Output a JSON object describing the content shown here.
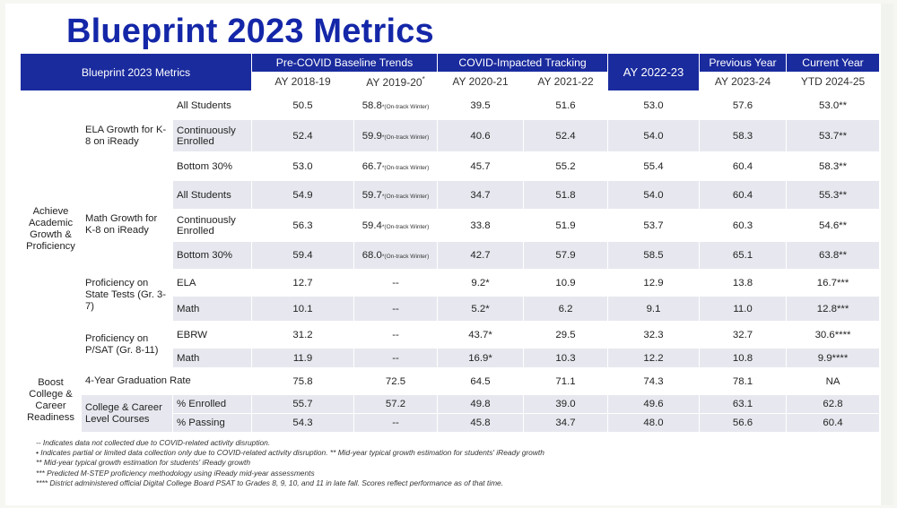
{
  "title": "Blueprint 2023 Metrics",
  "table": {
    "corner_label": "Blueprint 2023 Metrics",
    "column_groups": [
      {
        "label": "Pre-COVID Baseline Trends"
      },
      {
        "label": "COVID-Impacted Tracking"
      },
      {
        "label": "AY 2022-23"
      },
      {
        "label": "Previous Year"
      },
      {
        "label": "Current Year"
      }
    ],
    "subcolumns": [
      "AY 2018-19",
      "AY 2019-20",
      "AY 2020-21",
      "AY 2021-22",
      "AY 2023-24",
      "YTD 2024-25"
    ],
    "subcolumn_marks": {
      "ay2019_20": "*"
    },
    "categories": {
      "achieve": "Achieve Academic Growth & Proficiency",
      "boost": "Boost College & Career Readiness"
    },
    "subgroups": {
      "ela_growth": "ELA Growth for K-8 on iReady",
      "math_growth": "Math Growth for K-8 on iReady",
      "state_tests": "Proficiency on State Tests (Gr. 3-7)",
      "psat": "Proficiency on P/SAT (Gr. 8-11)",
      "graduation": "4-Year Graduation Rate",
      "college_courses": "College & Career Level Courses"
    },
    "rows": [
      {
        "label": "All Students",
        "values": [
          "50.5",
          "58.8",
          "39.5",
          "51.6",
          "53.0",
          "57.6",
          "53.0**"
        ],
        "v2_note": "*(On-track Winter)"
      },
      {
        "label": "Continuously Enrolled",
        "values": [
          "52.4",
          "59.9",
          "40.6",
          "52.4",
          "54.0",
          "58.3",
          "53.7**"
        ],
        "v2_note": "*(On-track Winter)"
      },
      {
        "label": "Bottom 30%",
        "values": [
          "53.0",
          "66.7",
          "45.7",
          "55.2",
          "55.4",
          "60.4",
          "58.3**"
        ],
        "v2_note": "*(On-track Winter)"
      },
      {
        "label": "All Students",
        "values": [
          "54.9",
          "59.7",
          "34.7",
          "51.8",
          "54.0",
          "60.4",
          "55.3**"
        ],
        "v2_note": "*(On-track Winter)"
      },
      {
        "label": "Continuously Enrolled",
        "values": [
          "56.3",
          "59.4",
          "33.8",
          "51.9",
          "53.7",
          "60.3",
          "54.6**"
        ],
        "v2_note": "*(On-track Winter)"
      },
      {
        "label": "Bottom 30%",
        "values": [
          "59.4",
          "68.0",
          "42.7",
          "57.9",
          "58.5",
          "65.1",
          "63.8**"
        ],
        "v2_note": "*(On-track Winter)"
      },
      {
        "label": "ELA",
        "values": [
          "12.7",
          "--",
          "9.2*",
          "10.9",
          "12.9",
          "13.8",
          "16.7***"
        ]
      },
      {
        "label": "Math",
        "values": [
          "10.1",
          "--",
          "5.2*",
          "6.2",
          "9.1",
          "11.0",
          "12.8***"
        ]
      },
      {
        "label": "EBRW",
        "values": [
          "31.2",
          "--",
          "43.7*",
          "29.5",
          "32.3",
          "32.7",
          "30.6****"
        ]
      },
      {
        "label": "Math",
        "values": [
          "11.9",
          "--",
          "16.9*",
          "10.3",
          "12.2",
          "10.8",
          "9.9****"
        ]
      },
      {
        "label": "",
        "values": [
          "75.8",
          "72.5",
          "64.5",
          "71.1",
          "74.3",
          "78.1",
          "NA"
        ]
      },
      {
        "label": "% Enrolled",
        "values": [
          "55.7",
          "57.2",
          "49.8",
          "39.0",
          "49.6",
          "63.1",
          "62.8"
        ]
      },
      {
        "label": "% Passing",
        "values": [
          "54.3",
          "--",
          "45.8",
          "34.7",
          "48.0",
          "56.6",
          "60.4"
        ]
      }
    ]
  },
  "footnotes": [
    "-- Indicates data not collected due to COVID-related activity disruption.",
    "•   Indicates partial or limited data collection only due to COVID-related activity disruption. ** Mid-year typical growth estimation for students' iReady growth",
    "** Mid-year typical growth estimation for students' iReady growth",
    "*** Predicted M-STEP proficiency methodology using iReady mid-year assessments",
    "**** District administered official Digital College Board PSAT to Grades 8, 9, 10, and 11 in late fall. Scores reflect performance as of that time."
  ]
}
